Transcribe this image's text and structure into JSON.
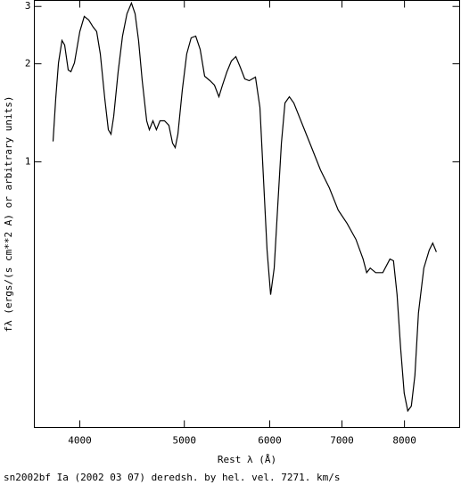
{
  "chart_data": {
    "type": "line",
    "x_label": "Rest λ (Å)",
    "y_label": "fλ (ergs/(s cm**2 A) or arbitrary units)",
    "caption": "sn2002bf Ia (2002 03 07) deredsh. by hel. vel.  7271. km/s",
    "xscale": "log",
    "yscale": "log",
    "color": "#000000",
    "xlim": [
      3630,
      9000
    ],
    "ylim": [
      0.153,
      3.13
    ],
    "xticks": [
      4000,
      5000,
      6000,
      7000,
      8000
    ],
    "yticks": [
      1,
      2,
      3
    ],
    "x": [
      3778,
      3800,
      3822,
      3851,
      3873,
      3902,
      3925,
      3955,
      4000,
      4038,
      4077,
      4116,
      4147,
      4179,
      4219,
      4251,
      4276,
      4300,
      4341,
      4382,
      4424,
      4466,
      4501,
      4535,
      4570,
      4614,
      4640,
      4676,
      4711,
      4747,
      4793,
      4838,
      4876,
      4904,
      4932,
      4979,
      5026,
      5074,
      5123,
      5172,
      5222,
      5282,
      5332,
      5383,
      5424,
      5476,
      5528,
      5581,
      5635,
      5689,
      5743,
      5820,
      5876,
      5921,
      5966,
      6012,
      6058,
      6104,
      6151,
      6198,
      6257,
      6317,
      6438,
      6561,
      6686,
      6814,
      6945,
      7078,
      7213,
      7324,
      7380,
      7436,
      7522,
      7638,
      7755,
      7814,
      7874,
      7934,
      7995,
      8056,
      8118,
      8180,
      8242,
      8337,
      8434,
      8498,
      8563
    ],
    "values": [
      1.156,
      1.565,
      2.014,
      2.358,
      2.285,
      1.915,
      1.891,
      2.014,
      2.512,
      2.797,
      2.727,
      2.593,
      2.512,
      2.145,
      1.565,
      1.255,
      1.216,
      1.379,
      1.891,
      2.433,
      2.85,
      3.074,
      2.85,
      2.358,
      1.775,
      1.337,
      1.255,
      1.337,
      1.255,
      1.337,
      1.337,
      1.295,
      1.142,
      1.106,
      1.216,
      1.667,
      2.145,
      2.403,
      2.433,
      2.214,
      1.832,
      1.775,
      1.72,
      1.585,
      1.72,
      1.891,
      2.04,
      2.105,
      1.951,
      1.798,
      1.775,
      1.821,
      1.469,
      0.887,
      0.536,
      0.391,
      0.472,
      0.734,
      1.142,
      1.516,
      1.585,
      1.516,
      1.295,
      1.106,
      0.945,
      0.833,
      0.711,
      0.647,
      0.578,
      0.503,
      0.457,
      0.472,
      0.457,
      0.457,
      0.503,
      0.497,
      0.391,
      0.268,
      0.195,
      0.172,
      0.178,
      0.221,
      0.344,
      0.472,
      0.536,
      0.563,
      0.529
    ]
  }
}
